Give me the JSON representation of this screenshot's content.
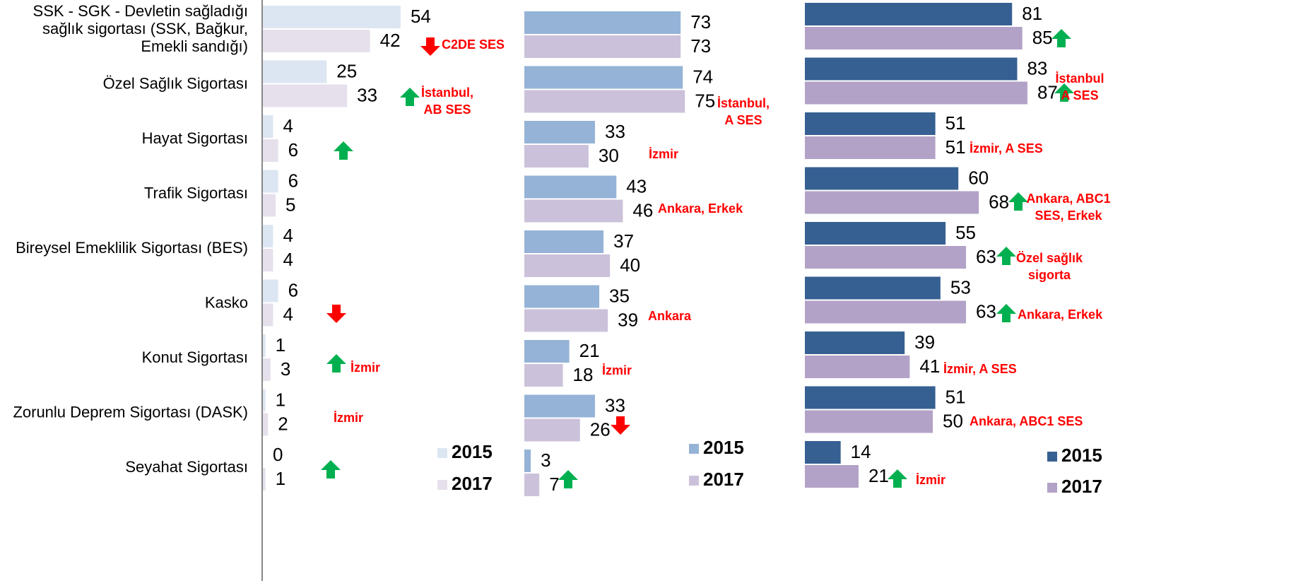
{
  "chart_data": {
    "type": "bar",
    "orientation": "horizontal",
    "categories": [
      [
        "SSK - SGK - Devletin sağladığı",
        "sağlık sigortası (SSK, Bağkur,",
        "Emekli sandığı)"
      ],
      [
        "Özel Sağlık Sigortası"
      ],
      [
        "Hayat Sigortası"
      ],
      [
        "Trafik Sigortası"
      ],
      [
        "Bireysel Emeklilik Sigortası (BES)"
      ],
      [
        "Kasko"
      ],
      [
        "Konut Sigortası"
      ],
      [
        "Zorunlu Deprem Sigortası (DASK)"
      ],
      [
        "Seyahat Sigortası"
      ]
    ],
    "panels": [
      {
        "series": [
          {
            "name": "2015",
            "color": "#dce6f2",
            "values": [
              54,
              25,
              4,
              6,
              4,
              6,
              1,
              1,
              0
            ]
          },
          {
            "name": "2017",
            "color": "#e6e0ec",
            "values": [
              42,
              33,
              6,
              5,
              4,
              4,
              3,
              2,
              1
            ]
          }
        ],
        "arrows": [
          "down",
          "up",
          "up",
          null,
          null,
          "down",
          "up",
          null,
          "up"
        ],
        "notes": [
          [
            "C2DE SES"
          ],
          [
            "İstanbul,",
            "AB SES"
          ],
          null,
          null,
          null,
          null,
          [
            "İzmir"
          ],
          [
            "İzmir"
          ],
          null
        ]
      },
      {
        "series": [
          {
            "name": "2015",
            "color": "#95b3d7",
            "values": [
              73,
              74,
              33,
              43,
              37,
              35,
              21,
              33,
              3
            ]
          },
          {
            "name": "2017",
            "color": "#ccc1da",
            "values": [
              73,
              75,
              30,
              46,
              40,
              39,
              18,
              26,
              7
            ]
          }
        ],
        "arrows": [
          null,
          null,
          null,
          null,
          null,
          null,
          null,
          "down",
          "up"
        ],
        "notes": [
          null,
          [
            "İstanbul,",
            "A SES"
          ],
          [
            "İzmir"
          ],
          [
            "Ankara, Erkek"
          ],
          null,
          [
            "Ankara"
          ],
          [
            "İzmir"
          ],
          null,
          null
        ]
      },
      {
        "series": [
          {
            "name": "2015",
            "color": "#366092",
            "values": [
              81,
              83,
              51,
              60,
              55,
              53,
              39,
              51,
              14
            ]
          },
          {
            "name": "2017",
            "color": "#b3a2c7",
            "values": [
              85,
              87,
              51,
              68,
              63,
              63,
              41,
              50,
              21
            ]
          }
        ],
        "arrows": [
          "up",
          "up",
          null,
          "up",
          "up",
          "up",
          null,
          null,
          "up"
        ],
        "notes": [
          null,
          [
            "İstanbul",
            "A SES"
          ],
          [
            "İzmir, A SES"
          ],
          [
            "Ankara, ABC1",
            "SES, Erkek"
          ],
          [
            "Özel sağlık",
            "sigorta"
          ],
          [
            "Ankara, Erkek"
          ],
          [
            "İzmir, A SES"
          ],
          [
            "Ankara, ABC1 SES"
          ],
          [
            "İzmir"
          ]
        ]
      }
    ]
  }
}
